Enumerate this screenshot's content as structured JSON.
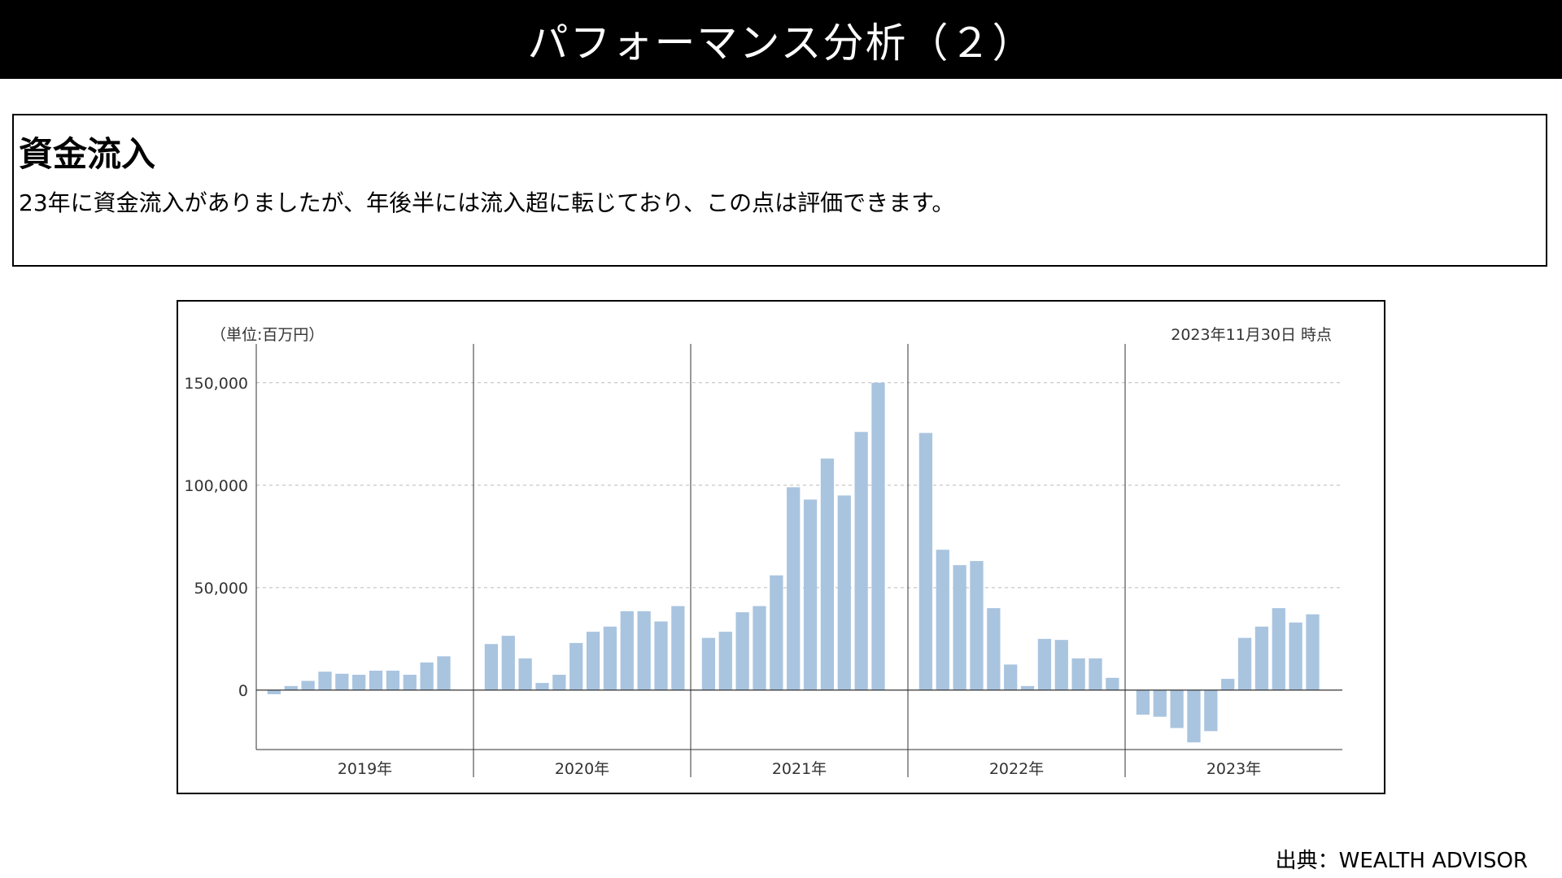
{
  "header": {
    "title": "パフォーマンス分析（２）"
  },
  "summary": {
    "heading": "資金流入",
    "text": "23年に資金流入がありましたが、年後半には流入超に転じており、この点は評価できます。"
  },
  "chart_header": {
    "unit": "（単位:百万円）",
    "as_of": "2023年11月30日 時点"
  },
  "footer": {
    "source": "出典：WEALTH ADVISOR"
  },
  "colors": {
    "bar": "#a9c4df",
    "axis": "#333333",
    "grid": "#bbbbbb"
  },
  "chart_data": {
    "type": "bar",
    "title": "",
    "xlabel": "",
    "ylabel": "",
    "ylim": [
      -29000,
      165000
    ],
    "yticks": [
      0,
      50000,
      100000,
      150000
    ],
    "ytick_labels": [
      "0",
      "50,000",
      "100,000",
      "150,000"
    ],
    "grid": "horizontal-dashed",
    "groups": [
      {
        "label": "2019年",
        "values": [
          -2000,
          2000,
          4500,
          9000,
          8000,
          7500,
          9500,
          9500,
          7500,
          13500,
          16500
        ]
      },
      {
        "label": "2020年",
        "values": [
          22500,
          26500,
          15500,
          3500,
          7500,
          23000,
          28500,
          31000,
          38500,
          38500,
          33500,
          41000
        ]
      },
      {
        "label": "2021年",
        "values": [
          25500,
          28500,
          38000,
          41000,
          56000,
          99000,
          93000,
          113000,
          95000,
          126000,
          150000
        ]
      },
      {
        "label": "2022年",
        "values": [
          125500,
          68500,
          61000,
          63000,
          40000,
          12500,
          2000,
          25000,
          24500,
          15500,
          15500,
          6000
        ]
      },
      {
        "label": "2023年",
        "values": [
          -12000,
          -13000,
          -18500,
          -25500,
          -20000,
          5500,
          25500,
          31000,
          40000,
          33000,
          37000
        ]
      }
    ]
  }
}
